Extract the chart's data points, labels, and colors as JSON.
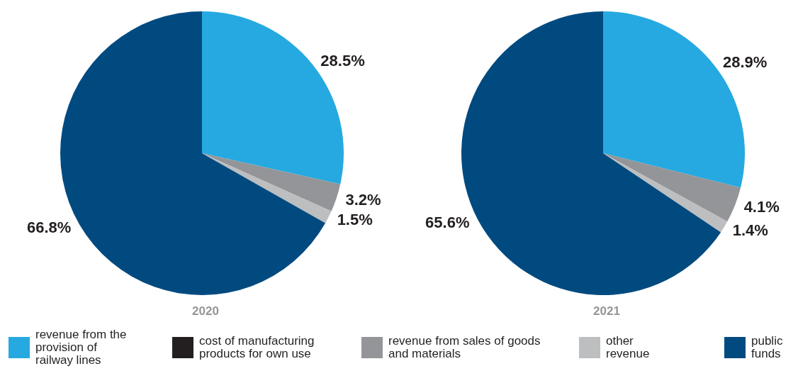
{
  "chart_data": {
    "type": "pie",
    "categories": [
      "revenue from the provision of railway lines",
      "cost of manufacturing products for own use",
      "revenue from sales of goods and materials",
      "other revenue",
      "public funds"
    ],
    "legend": "bottom",
    "series": [
      {
        "name": "2020",
        "values": [
          28.5,
          0,
          3.2,
          1.5,
          66.8
        ],
        "value_labels": [
          "28.5%",
          null,
          "3.2%",
          "1.5%",
          "66.8%"
        ],
        "colors": [
          "#26a9e0",
          "#231f20",
          "#939598",
          "#bcbec0",
          "#004a80"
        ]
      },
      {
        "name": "2021",
        "values": [
          28.9,
          0,
          4.1,
          1.4,
          65.6
        ],
        "value_labels": [
          "28.9%",
          null,
          "4.1%",
          "1.4%",
          "65.6%"
        ],
        "colors": [
          "#26a9e0",
          "#231f20",
          "#939598",
          "#bcbec0",
          "#004a80"
        ]
      }
    ]
  }
}
